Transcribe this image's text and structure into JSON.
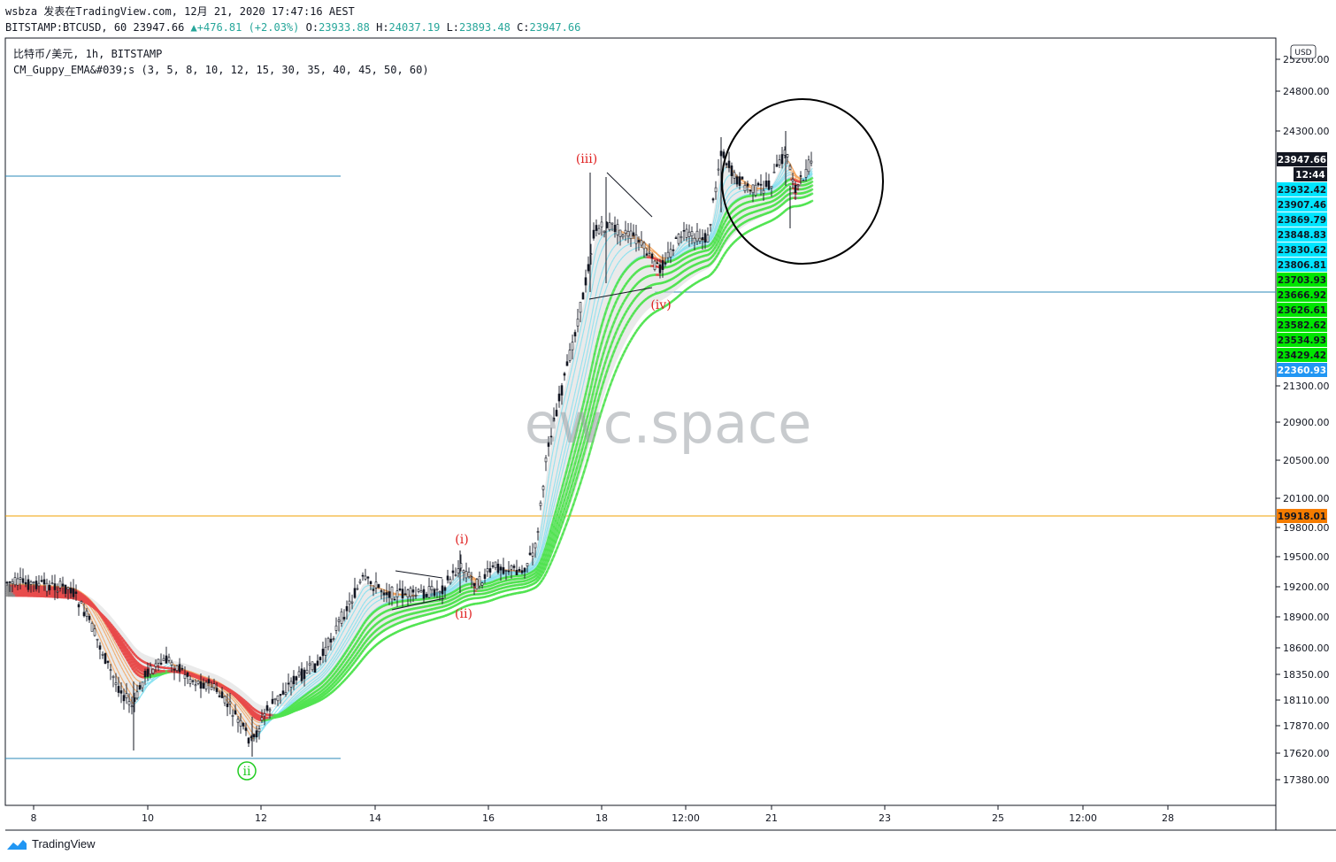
{
  "header": {
    "line1": "wsbza 发表在TradingView.com, 12月 21, 2020 17:47:16 AEST",
    "symbol": "BITSTAMP:BTCUSD, 60",
    "last": "23947.66",
    "change": "+476.81 (+2.03%)",
    "o_label": "O:",
    "o_val": "23933.88",
    "h_label": "H:",
    "h_val": "24037.19",
    "l_label": "L:",
    "l_val": "23893.48",
    "c_label": "C:",
    "c_val": "23947.66"
  },
  "legend": {
    "title": "比特币/美元, 1h, BITSTAMP",
    "indicator": "CM_Guppy_EMA&#039;s (3, 5, 8, 10, 12, 15, 30, 35, 40, 45, 50, 60)"
  },
  "watermark": "ewc.space",
  "currency": "USD",
  "branding": "TradingView",
  "colors": {
    "bull": "#4fe34f",
    "bear": "#e84a4a",
    "fast_up": "#7fe0f0",
    "fast_down": "#f4a35a",
    "neutral": "#888888",
    "hline": "#2b8ab8",
    "orange": "#f0a000"
  },
  "chart_data": {
    "type": "candlestick",
    "y_ticks": [
      25200,
      24800,
      24300,
      21300,
      20900,
      20500,
      20100,
      19800,
      19500,
      19200,
      18900,
      18600,
      18350,
      18110,
      17870,
      17620,
      17380
    ],
    "y_tick_labels": [
      "25200.00",
      "24800.00",
      "24300.00",
      "21300.00",
      "20900.00",
      "20500.00",
      "20100.00",
      "19800.00",
      "19500.00",
      "19200.00",
      "18900.00",
      "18600.00",
      "18350.00",
      "18110.00",
      "17870.00",
      "17620.00",
      "17380.00"
    ],
    "x_ticks": [
      "8",
      "10",
      "12",
      "14",
      "16",
      "18",
      "12:00",
      "21",
      "23",
      "25",
      "12:00",
      "28"
    ],
    "price_badges": [
      {
        "label": "23947.66",
        "color": "#131722",
        "text": "#ffffff"
      },
      {
        "label": "12:44",
        "color": "#131722",
        "text": "#ffffff"
      },
      {
        "label": "23932.42",
        "color": "#00e5ff",
        "text": "#131722"
      },
      {
        "label": "23907.46",
        "color": "#00e5ff",
        "text": "#131722"
      },
      {
        "label": "23869.79",
        "color": "#00e5ff",
        "text": "#131722"
      },
      {
        "label": "23848.83",
        "color": "#00e5ff",
        "text": "#131722"
      },
      {
        "label": "23830.62",
        "color": "#00e5ff",
        "text": "#131722"
      },
      {
        "label": "23806.81",
        "color": "#00e5ff",
        "text": "#131722"
      },
      {
        "label": "23703.93",
        "color": "#00e600",
        "text": "#131722"
      },
      {
        "label": "23666.92",
        "color": "#00e600",
        "text": "#131722"
      },
      {
        "label": "23626.61",
        "color": "#00e600",
        "text": "#131722"
      },
      {
        "label": "23582.62",
        "color": "#00e600",
        "text": "#131722"
      },
      {
        "label": "23534.93",
        "color": "#00e600",
        "text": "#131722"
      },
      {
        "label": "23429.42",
        "color": "#00e600",
        "text": "#131722"
      },
      {
        "label": "22360.93",
        "color": "#2196f3",
        "text": "#ffffff"
      },
      {
        "label": "19918.01",
        "color": "#f57c00",
        "text": "#131722"
      }
    ],
    "wave_labels": [
      {
        "label": "ii",
        "color": "#22cc22",
        "circled": true
      },
      {
        "label": "(i)",
        "color": "#e02020"
      },
      {
        "label": "(ii)",
        "color": "#e02020"
      },
      {
        "label": "(iii)",
        "color": "#e02020"
      },
      {
        "label": "(iv)",
        "color": "#e02020"
      }
    ],
    "hlines": [
      {
        "price": 22360.93,
        "color": "#2b8ab8"
      },
      {
        "price": 19918.01,
        "color": "#f0a000"
      },
      {
        "price": 17560,
        "color": "#2b8ab8"
      },
      {
        "price": 23666.92,
        "color": "#2b8ab8"
      }
    ]
  }
}
